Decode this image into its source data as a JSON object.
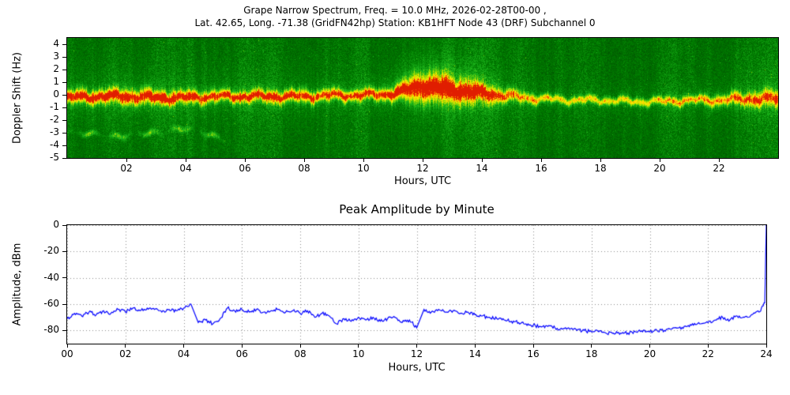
{
  "figure": {
    "background": "#ffffff"
  },
  "chart_data": [
    {
      "type": "heatmap",
      "name": "doppler_spectrogram",
      "title_line1": "Grape Narrow Spectrum, Freq. = 10.0 MHz, 2026-02-28T00-00 ,",
      "title_line2": "Lat.  42.65, Long. -71.38 (GridFN42hp) Station: KB1HFT Node 43 (DRF) Subchannel 0",
      "xlabel": "Hours, UTC",
      "ylabel": "Doppler Shift (Hz)",
      "xlim": [
        0,
        24
      ],
      "ylim": [
        -5,
        4.5
      ],
      "xtick_values": [
        2,
        4,
        6,
        8,
        10,
        12,
        14,
        16,
        18,
        20,
        22
      ],
      "xtick_labels": [
        "02",
        "04",
        "06",
        "08",
        "10",
        "12",
        "14",
        "16",
        "18",
        "20",
        "22"
      ],
      "ytick_values": [
        4,
        3,
        2,
        1,
        0,
        -1,
        -2,
        -3,
        -4,
        -5
      ],
      "ytick_labels": [
        "4",
        "3",
        "2",
        "1",
        "0",
        "-1",
        "-2",
        "-3",
        "-4",
        "-5"
      ],
      "colormap_stops": [
        "#004600",
        "#007d00",
        "#1eb91e",
        "#96d700",
        "#ebeb00",
        "#ffff00",
        "#ff8c00",
        "#e11e00"
      ],
      "background": "speckled green noise with faint vertical striations",
      "band": {
        "description": "Bright carrier ridge near 0 Hz: red core with yellow fringe before ~15 UTC, broadened and fuzzed up to +2 Hz near 12-14 UTC, narrow weaker yellow line drifting to about -0.5 Hz from 16 UTC onward",
        "hours": [
          0,
          1,
          2,
          3,
          4,
          5,
          6,
          7,
          8,
          9,
          10,
          11,
          12,
          13,
          14,
          15,
          16,
          17,
          18,
          19,
          20,
          21,
          22,
          23,
          24
        ],
        "center_hz": [
          -0.2,
          -0.1,
          -0.1,
          -0.2,
          -0.2,
          -0.1,
          -0.1,
          -0.1,
          -0.1,
          0,
          0,
          0.1,
          0.6,
          0.3,
          0.1,
          -0.1,
          -0.3,
          -0.4,
          -0.4,
          -0.5,
          -0.5,
          -0.4,
          -0.4,
          -0.3,
          -0.3
        ],
        "width_hz": [
          0.45,
          0.5,
          0.55,
          0.5,
          0.45,
          0.4,
          0.4,
          0.45,
          0.45,
          0.4,
          0.4,
          0.5,
          1.1,
          0.9,
          0.7,
          0.45,
          0.3,
          0.28,
          0.28,
          0.28,
          0.3,
          0.32,
          0.4,
          0.5,
          0.6
        ],
        "intensity": [
          1,
          1,
          1,
          1,
          1,
          0.95,
          0.95,
          0.95,
          0.95,
          0.9,
          0.9,
          0.95,
          1,
          1,
          0.95,
          0.8,
          0.68,
          0.63,
          0.63,
          0.63,
          0.68,
          0.75,
          0.8,
          0.85,
          0.9
        ]
      },
      "secondary_trace": {
        "description": "Faint wandering yellow-green trace near -3 Hz from 00:00 to about 05:30 UTC",
        "hours": [
          0,
          0.5,
          1,
          1.5,
          2,
          2.5,
          3,
          3.5,
          4,
          4.5,
          5,
          5.5
        ],
        "center_hz": [
          -2.9,
          -3.0,
          -3.1,
          -3.3,
          -3.2,
          -3.0,
          -3.0,
          -2.8,
          -2.6,
          -2.9,
          -3.3,
          -3.6
        ],
        "intensity": 0.5
      }
    },
    {
      "type": "line",
      "name": "peak_amplitude",
      "title": "Peak Amplitude by Minute",
      "xlabel": "Hours, UTC",
      "ylabel": "Amplitude, dBm",
      "xlim": [
        0,
        24
      ],
      "ylim": [
        -90,
        0
      ],
      "grid": "dotted",
      "line_color": "#0000ff",
      "xtick_values": [
        0,
        2,
        4,
        6,
        8,
        10,
        12,
        14,
        16,
        18,
        20,
        22,
        24
      ],
      "xtick_labels": [
        "00",
        "02",
        "04",
        "06",
        "08",
        "10",
        "12",
        "14",
        "16",
        "18",
        "20",
        "22",
        "24"
      ],
      "ytick_values": [
        0,
        -20,
        -40,
        -60,
        -80
      ],
      "ytick_labels": [
        "0",
        "-20",
        "-40",
        "-60",
        "-80"
      ],
      "series": [
        {
          "name": "Peak amplitude (dBm)",
          "x": [
            0,
            0.25,
            0.5,
            0.75,
            1,
            1.25,
            1.5,
            1.75,
            2,
            2.25,
            2.5,
            2.75,
            3,
            3.25,
            3.5,
            3.75,
            4,
            4.25,
            4.5,
            4.75,
            5,
            5.25,
            5.5,
            5.75,
            6,
            6.25,
            6.5,
            6.75,
            7,
            7.25,
            7.5,
            7.75,
            8,
            8.25,
            8.5,
            8.75,
            9,
            9.25,
            9.5,
            9.75,
            10,
            10.25,
            10.5,
            10.75,
            11,
            11.25,
            11.5,
            11.75,
            12,
            12.25,
            12.5,
            12.75,
            13,
            13.25,
            13.5,
            13.75,
            14,
            14.25,
            14.5,
            14.75,
            15,
            15.25,
            15.5,
            15.75,
            16,
            16.25,
            16.5,
            16.75,
            17,
            17.25,
            17.5,
            17.75,
            18,
            18.25,
            18.5,
            18.75,
            19,
            19.25,
            19.5,
            19.75,
            20,
            20.25,
            20.5,
            20.75,
            21,
            21.25,
            21.5,
            21.75,
            22,
            22.25,
            22.5,
            22.75,
            23,
            23.25,
            23.5,
            23.75,
            23.95,
            24
          ],
          "y": [
            -71,
            -67,
            -69,
            -66,
            -68,
            -65,
            -67,
            -64,
            -66,
            -63,
            -65,
            -63,
            -64,
            -66,
            -64,
            -65,
            -63,
            -60,
            -74,
            -72,
            -75,
            -71,
            -63,
            -65,
            -64,
            -66,
            -64,
            -66,
            -65,
            -64,
            -66,
            -65,
            -67,
            -65,
            -70,
            -67,
            -69,
            -75,
            -71,
            -73,
            -70,
            -72,
            -70,
            -73,
            -71,
            -70,
            -74,
            -72,
            -78,
            -64,
            -66,
            -64,
            -66,
            -65,
            -67,
            -66,
            -68,
            -69,
            -70,
            -71,
            -72,
            -73,
            -74,
            -75,
            -76,
            -77,
            -77,
            -78,
            -79,
            -79,
            -80,
            -80,
            -81,
            -81,
            -82,
            -82,
            -82,
            -82,
            -81,
            -81,
            -81,
            -80,
            -80,
            -79,
            -78,
            -77,
            -76,
            -75,
            -74,
            -72,
            -70,
            -72,
            -69,
            -70,
            -68,
            -66,
            -59,
            0
          ]
        }
      ]
    }
  ]
}
